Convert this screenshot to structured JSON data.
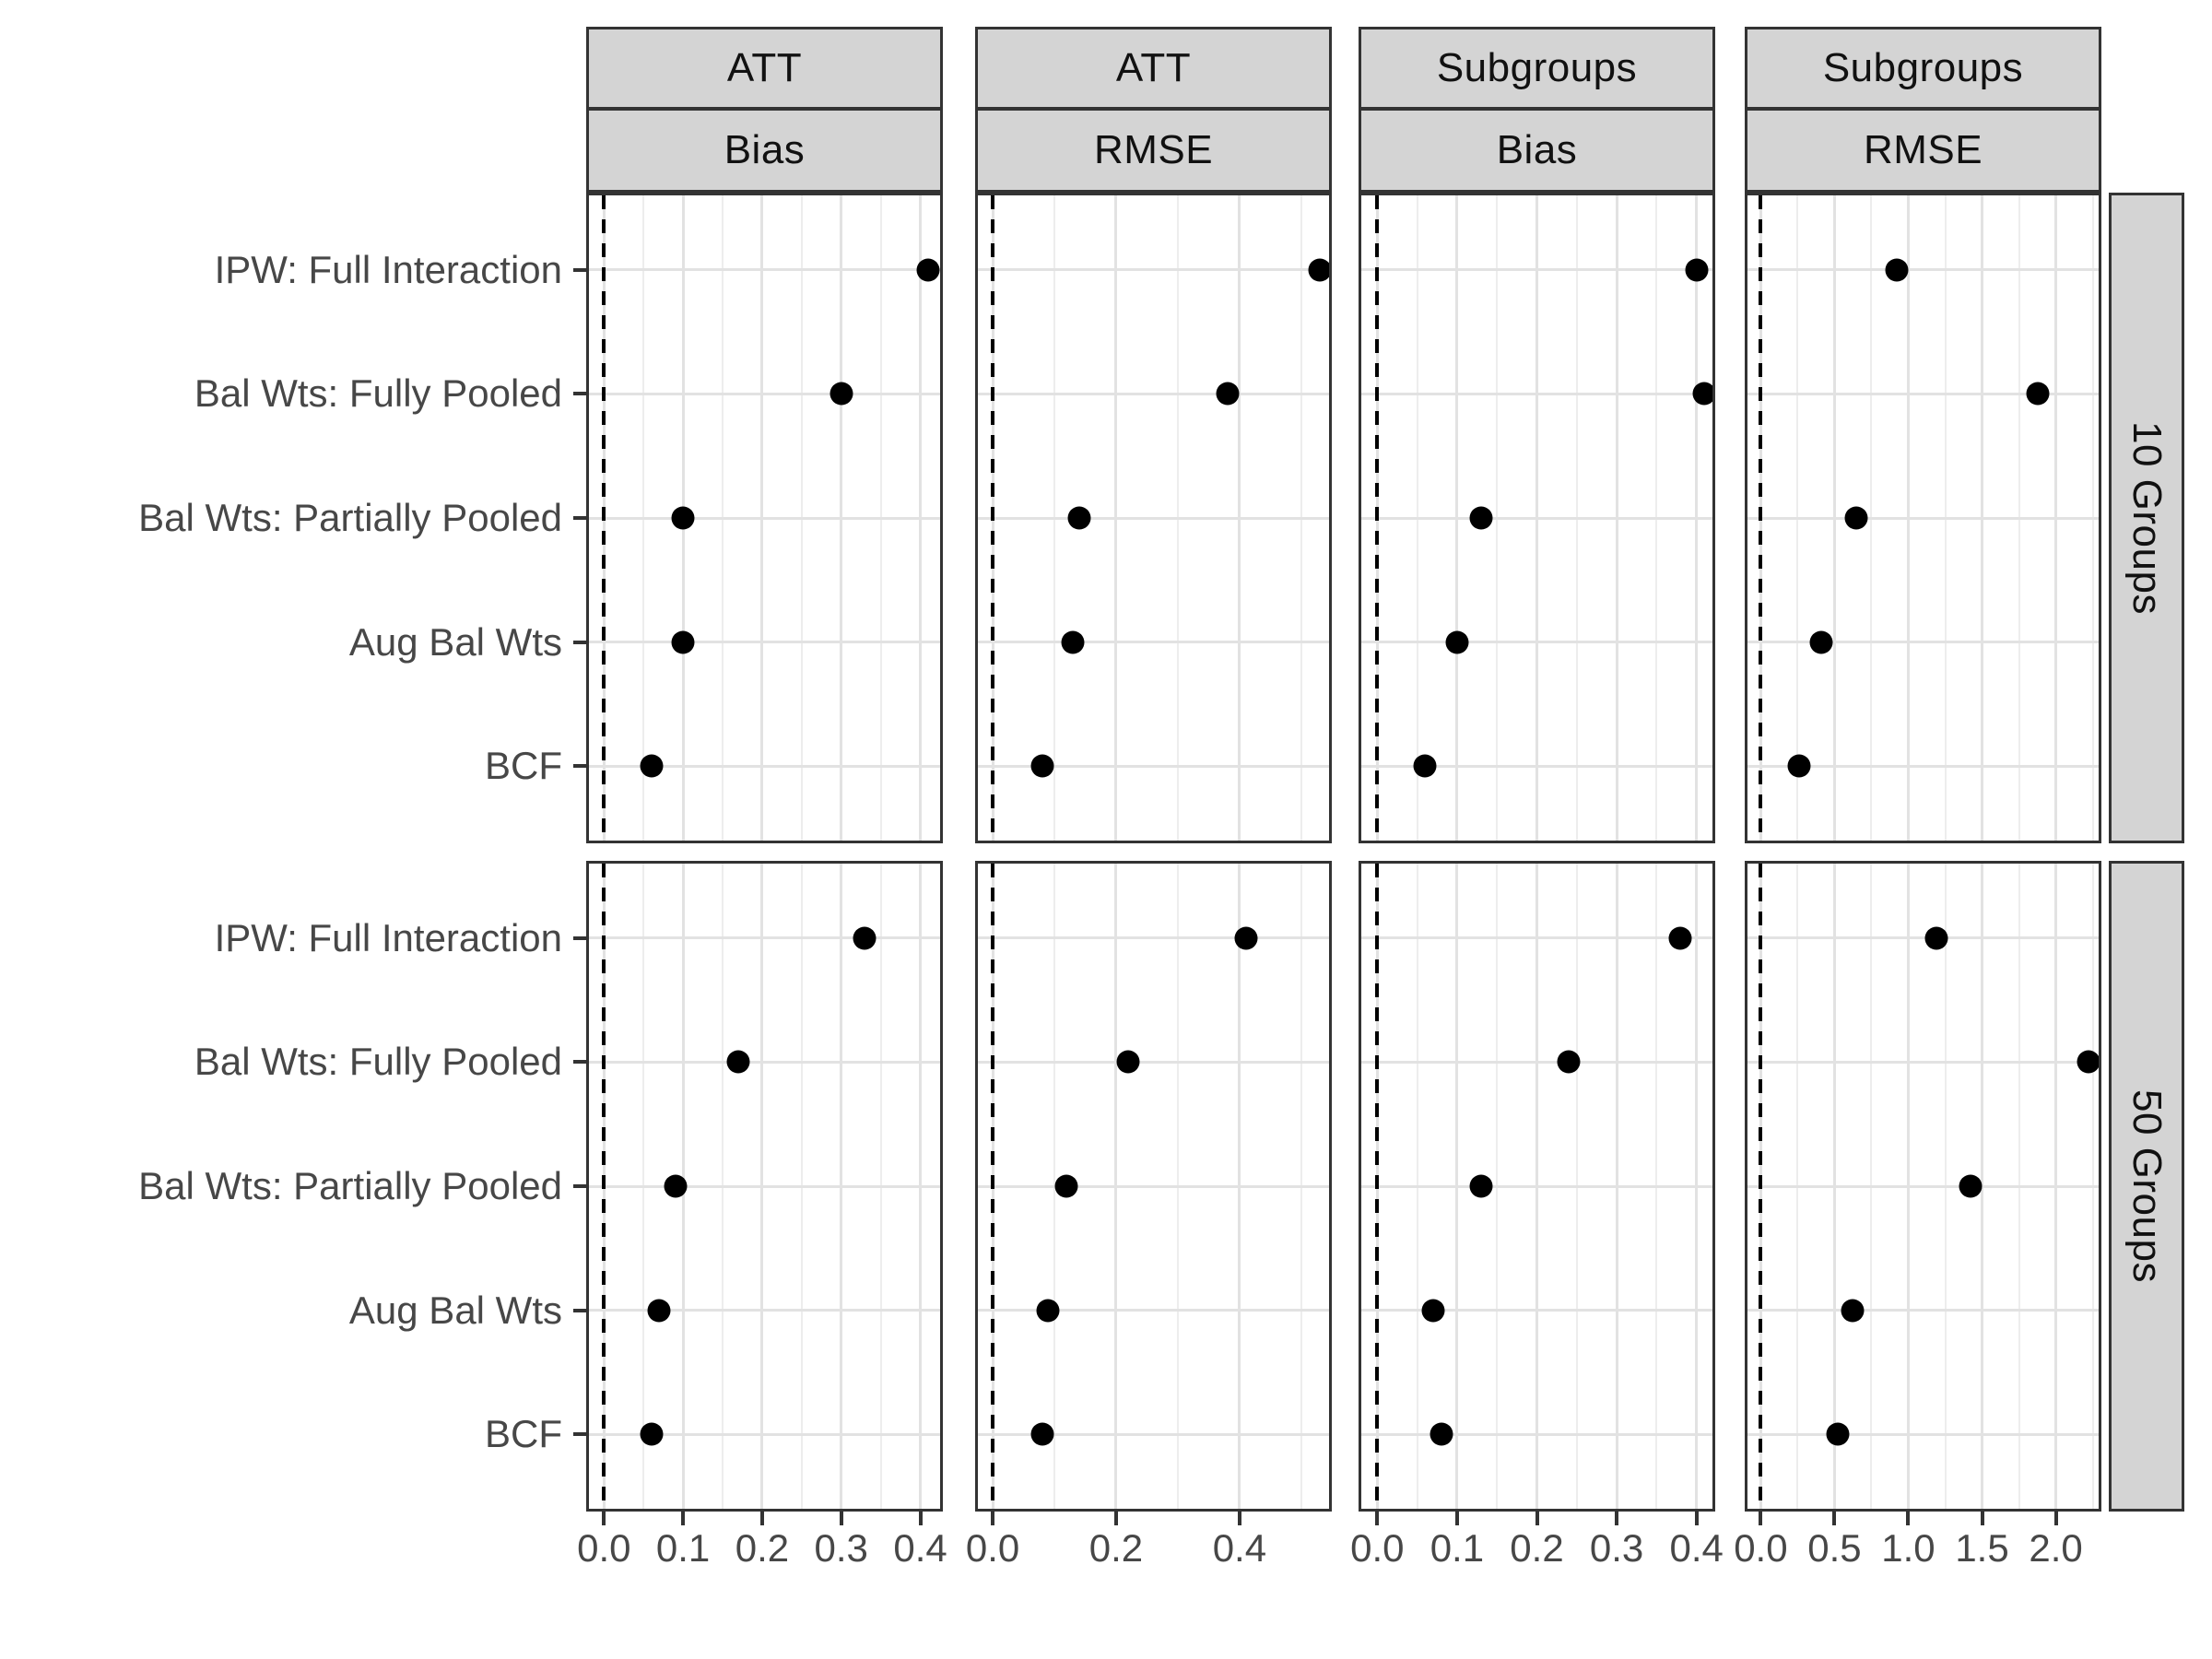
{
  "chart_data": {
    "type": "scatter",
    "title": "",
    "xlabel": "",
    "ylabel": "",
    "legend": "none",
    "grid": "on",
    "reference_line_x": 0,
    "reference_line_style": "dashed",
    "facet_rows": [
      "10 Groups",
      "50 Groups"
    ],
    "facet_cols": [
      {
        "estimand": "ATT",
        "metric": "Bias"
      },
      {
        "estimand": "ATT",
        "metric": "RMSE"
      },
      {
        "estimand": "Subgroups",
        "metric": "Bias"
      },
      {
        "estimand": "Subgroups",
        "metric": "RMSE"
      }
    ],
    "methods": [
      "IPW: Full Interaction",
      "Bal Wts: Fully Pooled",
      "Bal Wts: Partially Pooled",
      "Aug Bal Wts",
      "BCF"
    ],
    "x_axes": [
      {
        "domain": [
          -0.019,
          0.425
        ],
        "major_ticks": [
          0.0,
          0.1,
          0.2,
          0.3,
          0.4
        ],
        "minor_ticks": [
          0.05,
          0.15,
          0.25,
          0.35
        ],
        "tick_labels": [
          "0.0",
          "0.1",
          "0.2",
          "0.3",
          "0.4"
        ]
      },
      {
        "domain": [
          -0.024,
          0.545
        ],
        "major_ticks": [
          0.0,
          0.2,
          0.4
        ],
        "minor_ticks": [
          0.1,
          0.3,
          0.5
        ],
        "tick_labels": [
          "0.0",
          "0.2",
          "0.4"
        ]
      },
      {
        "domain": [
          -0.02,
          0.42
        ],
        "major_ticks": [
          0.0,
          0.1,
          0.2,
          0.3,
          0.4
        ],
        "minor_ticks": [
          0.05,
          0.15,
          0.25,
          0.35
        ],
        "tick_labels": [
          "0.0",
          "0.1",
          "0.2",
          "0.3",
          "0.4"
        ]
      },
      {
        "domain": [
          -0.09,
          2.29
        ],
        "major_ticks": [
          0.0,
          0.5,
          1.0,
          1.5,
          2.0
        ],
        "minor_ticks": [
          0.25,
          0.75,
          1.25,
          1.75,
          2.25
        ],
        "tick_labels": [
          "0.0",
          "0.5",
          "1.0",
          "1.5",
          "2.0"
        ]
      }
    ],
    "panels": [
      {
        "facet_row": "10 Groups",
        "cols": [
          {
            "estimand": "ATT",
            "metric": "Bias",
            "values": [
              0.41,
              0.3,
              0.1,
              0.1,
              0.06
            ]
          },
          {
            "estimand": "ATT",
            "metric": "RMSE",
            "values": [
              0.53,
              0.38,
              0.14,
              0.13,
              0.08
            ]
          },
          {
            "estimand": "Subgroups",
            "metric": "Bias",
            "values": [
              0.4,
              0.41,
              0.13,
              0.1,
              0.06
            ]
          },
          {
            "estimand": "Subgroups",
            "metric": "RMSE",
            "values": [
              0.92,
              1.88,
              0.65,
              0.41,
              0.26
            ]
          }
        ]
      },
      {
        "facet_row": "50 Groups",
        "cols": [
          {
            "estimand": "ATT",
            "metric": "Bias",
            "values": [
              0.33,
              0.17,
              0.09,
              0.07,
              0.06
            ]
          },
          {
            "estimand": "ATT",
            "metric": "RMSE",
            "values": [
              0.41,
              0.22,
              0.12,
              0.09,
              0.08
            ]
          },
          {
            "estimand": "Subgroups",
            "metric": "Bias",
            "values": [
              0.38,
              0.24,
              0.13,
              0.07,
              0.08
            ]
          },
          {
            "estimand": "Subgroups",
            "metric": "RMSE",
            "values": [
              1.19,
              2.22,
              1.42,
              0.62,
              0.52
            ]
          }
        ]
      }
    ],
    "colors": {
      "point": "#000000",
      "panel_border": "#333333",
      "strip_fill": "#d4d4d4",
      "strip_text": "#111111",
      "grid_major": "#e2e2e2",
      "grid_minor": "#ededed",
      "axis_text": "#474747",
      "reference_line": "#000000",
      "background": "#ffffff"
    }
  }
}
